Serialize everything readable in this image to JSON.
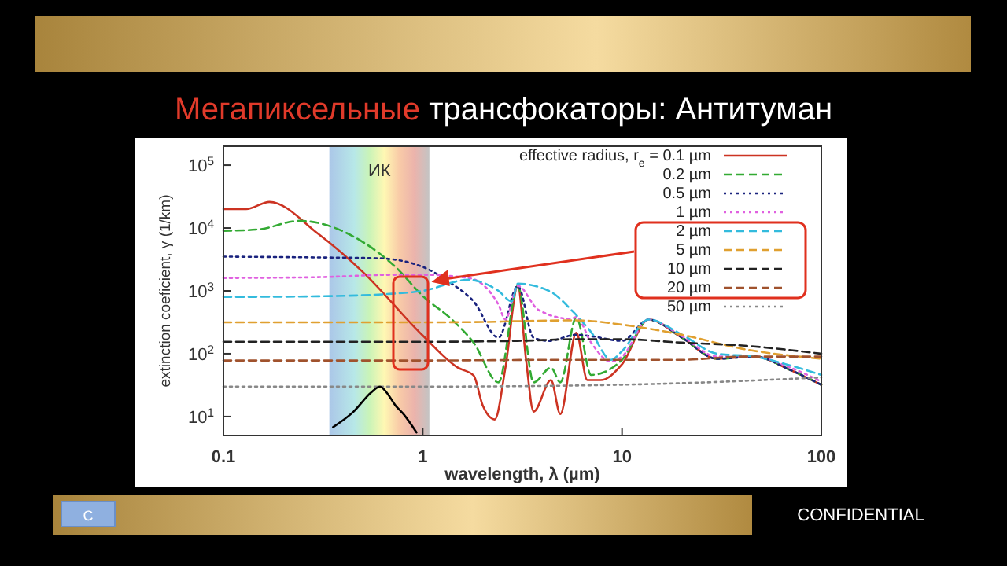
{
  "chart_data": {
    "type": "line",
    "title": "Мегапиксельные трансфокаторы: Антитуман",
    "xlabel": "wavelength, λ (µm)",
    "ylabel": "extinction coeficient, γ (1/km)",
    "legend_title": "effective radius, r$_{e}$ =",
    "log": "xy",
    "grid": false,
    "legend": "top right",
    "xlim": [
      0.1,
      100
    ],
    "ylim": [
      5,
      200000
    ],
    "xticks": [
      0.1,
      1,
      10,
      100
    ],
    "yticks": [
      {
        "value": 10,
        "label": "10$^{1}$"
      },
      {
        "value": 100,
        "label": "10$^{2}$"
      },
      {
        "value": 1000,
        "label": "10$^{3}$"
      },
      {
        "value": 10000,
        "label": "10$^{4}$"
      },
      {
        "value": 100000,
        "label": "10$^{5}$"
      }
    ],
    "bands": [
      {
        "axis": "x",
        "from": 0.34,
        "to": 1.08,
        "label": "ИК"
      }
    ],
    "annotations": [
      "CONFIDENTIAL",
      "C"
    ],
    "series": [
      {
        "name": "0.1 µm",
        "color": "#cc3322",
        "line_style": "solid",
        "x": [
          0.1,
          0.13,
          0.17,
          0.3,
          0.5,
          1,
          1.5,
          1.8,
          2.0,
          2.3,
          2.6,
          3.0,
          3.3,
          3.6,
          4.4,
          4.9,
          5.9,
          6.7,
          7.8,
          10,
          13.6,
          20,
          30,
          46,
          70,
          100
        ],
        "values": [
          20000,
          20000,
          26000,
          8000,
          2000,
          195,
          60,
          45,
          15,
          9,
          60,
          1200,
          80,
          12,
          38,
          11,
          215,
          38,
          38,
          68,
          350,
          180,
          83,
          90,
          55,
          32
        ]
      },
      {
        "name": "0.2 µm",
        "color": "#33aa33",
        "line_style": "dashed",
        "x": [
          0.1,
          0.15,
          0.24,
          0.5,
          0.73,
          1,
          1.4,
          1.8,
          2.4,
          3.0,
          3.6,
          4.4,
          4.9,
          5.9,
          7,
          10,
          13.6,
          20,
          30,
          46,
          70,
          100
        ],
        "values": [
          9000,
          9500,
          13000,
          6000,
          2400,
          830,
          350,
          150,
          35,
          1200,
          35,
          60,
          35,
          380,
          46,
          80,
          350,
          180,
          83,
          90,
          55,
          32
        ]
      },
      {
        "name": "0.5 µm",
        "color": "#1a237e",
        "line_style": "dotted",
        "x": [
          0.1,
          0.3,
          0.6,
          1,
          1.4,
          1.8,
          2.4,
          3.0,
          3.6,
          4.3,
          5.9,
          7,
          10,
          13.6,
          20,
          30,
          46,
          70,
          100
        ],
        "values": [
          3500,
          3400,
          3300,
          2400,
          1300,
          680,
          180,
          1200,
          180,
          160,
          200,
          190,
          160,
          350,
          180,
          83,
          90,
          55,
          32
        ]
      },
      {
        "name": "1 µm",
        "color": "#e060e0",
        "line_style": "dotted",
        "x": [
          0.1,
          0.3,
          0.7,
          1,
          1.7,
          2.4,
          2.6,
          3.0,
          3.8,
          5.5,
          5.9,
          7,
          8.8,
          10,
          13.6,
          20,
          30,
          46,
          70,
          100
        ],
        "values": [
          1600,
          1650,
          1800,
          1800,
          1600,
          600,
          350,
          1200,
          500,
          360,
          380,
          150,
          75,
          90,
          350,
          190,
          90,
          90,
          60,
          36
        ]
      },
      {
        "name": "2 µm",
        "color": "#33bbdd",
        "line_style": "dashed",
        "x": [
          0.1,
          0.3,
          0.7,
          1,
          1.7,
          2.4,
          2.8,
          3.0,
          4.3,
          5.7,
          7,
          8.8,
          10,
          13.6,
          20,
          30,
          46,
          70,
          100
        ],
        "values": [
          800,
          820,
          900,
          1000,
          1500,
          1000,
          680,
          1300,
          1000,
          460,
          220,
          80,
          110,
          350,
          200,
          100,
          90,
          65,
          46
        ]
      },
      {
        "name": "5 µm",
        "color": "#e0a030",
        "line_style": "dashed",
        "x": [
          0.1,
          0.5,
          1,
          2,
          3,
          5.9,
          10,
          20,
          40,
          100
        ],
        "values": [
          316,
          316,
          316,
          320,
          330,
          340,
          290,
          200,
          120,
          83
        ]
      },
      {
        "name": "10 µm",
        "color": "#222222",
        "line_style": "dashed",
        "x": [
          0.1,
          1,
          3,
          5.9,
          10,
          20,
          40,
          100
        ],
        "values": [
          155,
          155,
          160,
          170,
          170,
          150,
          135,
          100
        ]
      },
      {
        "name": "20 µm",
        "color": "#a0522d",
        "line_style": "dashed",
        "x": [
          0.1,
          1,
          5,
          20,
          40,
          100
        ],
        "values": [
          78,
          78,
          80,
          80,
          90,
          90
        ]
      },
      {
        "name": "50 µm",
        "color": "#888888",
        "line_style": "dotted",
        "x": [
          0.1,
          1,
          5,
          20,
          100
        ],
        "values": [
          30,
          30,
          31,
          34,
          42
        ]
      },
      {
        "color": "#000000",
        "line_style": "solid",
        "x": [
          0.355,
          0.45,
          0.55,
          0.61,
          0.66,
          0.73,
          0.8,
          0.93
        ],
        "values": [
          6.8,
          12,
          24,
          30,
          24,
          15,
          11,
          5.6
        ]
      }
    ]
  }
}
